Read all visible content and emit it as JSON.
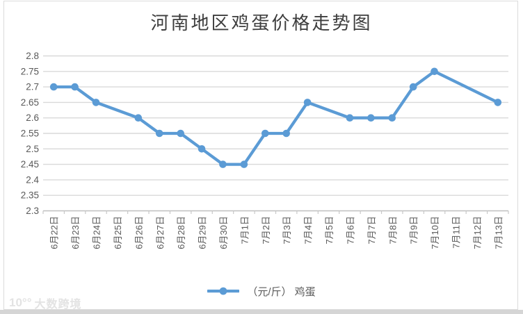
{
  "title": "河南地区鸡蛋价格走势图",
  "legend": {
    "label": "（元/斤） 鸡蛋"
  },
  "watermark": {
    "logo": "10°°",
    "text": "大数跨境"
  },
  "colors": {
    "line": "#5B9BD5",
    "grid": "#D9D9D9",
    "axis": "#BFBFBF",
    "tick": "#C8C8C8",
    "tick_label": "#595959",
    "title": "#3D3D3D",
    "border": "#DBDBDB",
    "strip": "#D5D5D5",
    "watermark": "#E3E3E3"
  },
  "chart_data": {
    "type": "line",
    "title": "河南地区鸡蛋价格走势图",
    "categories": [
      "6月22日",
      "6月23日",
      "6月24日",
      "6月25日",
      "6月26日",
      "6月27日",
      "6月28日",
      "6月29日",
      "6月30日",
      "7月1日",
      "7月2日",
      "7月3日",
      "7月4日",
      "7月5日",
      "7月6日",
      "7月7日",
      "7月8日",
      "7月9日",
      "7月10日",
      "7月11日",
      "7月12日",
      "7月13日"
    ],
    "series": [
      {
        "name": "（元/斤） 鸡蛋",
        "values": [
          2.7,
          2.7,
          2.65,
          null,
          2.6,
          2.55,
          2.55,
          2.5,
          2.45,
          2.45,
          2.55,
          2.55,
          2.65,
          null,
          2.6,
          2.6,
          2.6,
          2.7,
          2.75,
          null,
          null,
          2.65
        ]
      }
    ],
    "xlabel": "",
    "ylabel": "",
    "ylim": [
      2.3,
      2.8
    ],
    "ytick_step": 0.05,
    "ytick_labels": [
      "2.8",
      "2.75",
      "2.7",
      "2.65",
      "2.6",
      "2.55",
      "2.5",
      "2.45",
      "2.4",
      "2.35",
      "2.3"
    ],
    "grid": "horizontal",
    "legend_position": "bottom",
    "marker": "circle",
    "x_label_rotation": -90
  }
}
